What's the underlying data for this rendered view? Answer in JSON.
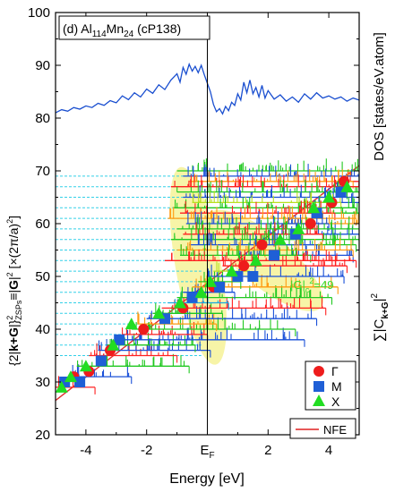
{
  "chart_data": {
    "type": "scatter",
    "panel_label": "(d)",
    "title": {
      "base": "Al",
      "sub1": "114",
      "mid": "Mn",
      "sub2": "24",
      "tail": " (cP138)"
    },
    "xlabel": "Energy [eV]",
    "xlim": [
      -5,
      5
    ],
    "x_ticks": [
      {
        "value": -4,
        "label": "-4"
      },
      {
        "value": -2,
        "label": "-2"
      },
      {
        "value": 0,
        "label": "E",
        "sub": "F"
      },
      {
        "value": 2,
        "label": "2"
      },
      {
        "value": 4,
        "label": "4"
      }
    ],
    "ylabel_left": "{2|k+G|}²ZSPs≡|G|² [×(2π/a)²]",
    "ylabel_left_parts": {
      "p1": "{2|",
      "bold": "k+G",
      "p2": "|}",
      "sup1": "2",
      "sub1": "ZSPs",
      "p3": "≡|",
      "bold2": "G",
      "p4": "|",
      "sup2": "2",
      "p5": " [×(2π/a)",
      "sup3": "2",
      "p6": "]"
    },
    "ylabel_right_top": "DOS [states/eV.atom]",
    "ylabel_right_bottom": {
      "p1": "∑|C",
      "sub": "k+G",
      "p2": "|",
      "sup": "2"
    },
    "ylim": [
      20,
      100
    ],
    "y_ticks": [
      20,
      30,
      40,
      50,
      60,
      70,
      80,
      90,
      100
    ],
    "annotation": {
      "p1": "|G|",
      "sub": "c",
      "sup": "2",
      "p2": "=49"
    },
    "legend": {
      "placement": "bottom-right",
      "entries": [
        {
          "label": "Γ",
          "marker": "circle",
          "color": "#ee1c1c"
        },
        {
          "label": "M",
          "marker": "square",
          "color": "#1f5fd6"
        },
        {
          "label": "X",
          "marker": "triangle",
          "color": "#22dd22"
        }
      ],
      "line_entry": {
        "label": "NFE",
        "color": "#e02020"
      }
    },
    "colors": {
      "dos": "#1a4fd0",
      "nfe": "#e03030",
      "gamma": "#ee1c1c",
      "m": "#1f5fd6",
      "x": "#22dd22",
      "cyan_lines": "#33d0e8",
      "highlight": "#f4f08a",
      "annotation": "#33dd33",
      "bars": [
        "#ff2020",
        "#1a50d8",
        "#20c820",
        "#ff9a10",
        "#18a8e0",
        "#b8e020"
      ]
    },
    "nfe_line": [
      [
        -5,
        26.5
      ],
      [
        5,
        71
      ]
    ],
    "cyan_levels": [
      35,
      37,
      39,
      41,
      43,
      45,
      47,
      49,
      51,
      53,
      55,
      57,
      59,
      61,
      63,
      65,
      67,
      69
    ],
    "series": [
      {
        "name": "Γ",
        "marker": "circle",
        "points": [
          [
            -4.4,
            31
          ],
          [
            -3.9,
            32
          ],
          [
            -3.2,
            36
          ],
          [
            -2.1,
            40
          ],
          [
            -0.8,
            44
          ],
          [
            0.2,
            48
          ],
          [
            1.2,
            52
          ],
          [
            1.8,
            56
          ],
          [
            3.4,
            60
          ],
          [
            4.1,
            64
          ],
          [
            4.5,
            68
          ]
        ]
      },
      {
        "name": "M",
        "marker": "square",
        "points": [
          [
            -4.7,
            30
          ],
          [
            -4.2,
            30
          ],
          [
            -3.5,
            34
          ],
          [
            -2.9,
            38
          ],
          [
            -1.4,
            42
          ],
          [
            -0.5,
            46
          ],
          [
            0.4,
            48
          ],
          [
            1.0,
            50
          ],
          [
            1.5,
            50
          ],
          [
            2.2,
            54
          ],
          [
            2.9,
            58
          ],
          [
            3.6,
            62
          ],
          [
            4.4,
            66
          ]
        ]
      },
      {
        "name": "X",
        "marker": "triangle",
        "points": [
          [
            -4.8,
            29
          ],
          [
            -4.5,
            31
          ],
          [
            -4.0,
            33
          ],
          [
            -3.1,
            37
          ],
          [
            -2.5,
            41
          ],
          [
            -1.6,
            43
          ],
          [
            -0.9,
            45
          ],
          [
            -0.2,
            47
          ],
          [
            0.1,
            49
          ],
          [
            0.8,
            51
          ],
          [
            1.6,
            53
          ],
          [
            2.4,
            57
          ],
          [
            3.0,
            59
          ],
          [
            3.5,
            63
          ],
          [
            4.0,
            65
          ],
          [
            4.6,
            67
          ]
        ]
      }
    ],
    "bar_levels": [
      {
        "y": 29,
        "x0": -5.0,
        "x1": -3.7,
        "c": 0
      },
      {
        "y": 31,
        "x0": -4.6,
        "x1": -2.5,
        "c": 1
      },
      {
        "y": 33,
        "x0": -4.3,
        "x1": -0.6,
        "c": 2
      },
      {
        "y": 35,
        "x0": -3.9,
        "x1": -1.0,
        "c": 0
      },
      {
        "y": 36,
        "x0": -3.6,
        "x1": 0.1,
        "c": 1
      },
      {
        "y": 37,
        "x0": -3.3,
        "x1": -0.4,
        "c": 2
      },
      {
        "y": 38,
        "x0": -3.0,
        "x1": 3.2,
        "c": 1
      },
      {
        "y": 39,
        "x0": -2.8,
        "x1": 0.0,
        "c": 0
      },
      {
        "y": 40,
        "x0": -2.5,
        "x1": 2.9,
        "c": 2
      },
      {
        "y": 41,
        "x0": -2.3,
        "x1": 0.3,
        "c": 3
      },
      {
        "y": 42,
        "x0": -2.0,
        "x1": 3.6,
        "c": 1
      },
      {
        "y": 43,
        "x0": -1.8,
        "x1": 0.5,
        "c": 2
      },
      {
        "y": 44,
        "x0": -1.5,
        "x1": 3.9,
        "c": 0
      },
      {
        "y": 45,
        "x0": -1.3,
        "x1": 0.7,
        "c": 4
      },
      {
        "y": 46,
        "x0": -1.0,
        "x1": 4.1,
        "c": 2
      },
      {
        "y": 47,
        "x0": -0.8,
        "x1": 0.9,
        "c": 1
      },
      {
        "y": 48,
        "x0": -0.5,
        "x1": 4.3,
        "c": 3
      },
      {
        "y": 49,
        "x0": -0.3,
        "x1": 1.1,
        "c": 2
      },
      {
        "y": 50,
        "x0": 0.0,
        "x1": 4.5,
        "c": 1
      },
      {
        "y": 51,
        "x0": 0.2,
        "x1": 1.4,
        "c": 5
      },
      {
        "y": 52,
        "x0": 0.5,
        "x1": 4.6,
        "c": 0
      },
      {
        "y": 53,
        "x0": 0.7,
        "x1": 1.6,
        "c": 2
      },
      {
        "y": 54,
        "x0": 1.0,
        "x1": 4.8,
        "c": 1
      },
      {
        "y": 55,
        "x0": 1.2,
        "x1": 1.9,
        "c": 3
      },
      {
        "y": 56,
        "x0": 1.5,
        "x1": 4.9,
        "c": 2
      },
      {
        "y": 57,
        "x0": 1.7,
        "x1": 2.2,
        "c": 0
      },
      {
        "y": 58,
        "x0": 2.0,
        "x1": 5.0,
        "c": 1
      },
      {
        "y": 59,
        "x0": 2.2,
        "x1": 2.6,
        "c": 2
      },
      {
        "y": 60,
        "x0": 2.5,
        "x1": 5.0,
        "c": 3
      },
      {
        "y": 61,
        "x0": 2.7,
        "x1": 3.0,
        "c": 1
      },
      {
        "y": 62,
        "x0": 3.0,
        "x1": 5.0,
        "c": 2
      },
      {
        "y": 63,
        "x0": 3.2,
        "x1": 3.5,
        "c": 0
      },
      {
        "y": 64,
        "x0": 3.5,
        "x1": 5.0,
        "c": 1
      },
      {
        "y": 65,
        "x0": 3.7,
        "x1": 4.0,
        "c": 5
      },
      {
        "y": 66,
        "x0": 4.0,
        "x1": 5.0,
        "c": 2
      },
      {
        "y": 67,
        "x0": 4.2,
        "x1": 4.5,
        "c": 1
      },
      {
        "y": 68,
        "x0": 4.5,
        "x1": 5.0,
        "c": 0
      },
      {
        "y": 69,
        "x0": 4.6,
        "x1": 5.0,
        "c": 3
      }
    ],
    "upper_bars": [
      {
        "y": 70,
        "x0": -1.0,
        "x1": 5.0,
        "c": 2
      },
      {
        "y": 69,
        "x0": -0.8,
        "x1": 5.0,
        "c": 1
      },
      {
        "y": 68,
        "x0": -0.6,
        "x1": 4.8,
        "c": 3
      },
      {
        "y": 67,
        "x0": -1.2,
        "x1": 5.0,
        "c": 0
      },
      {
        "y": 66,
        "x0": -1.0,
        "x1": 4.6,
        "c": 2
      },
      {
        "y": 65,
        "x0": -0.8,
        "x1": 5.0,
        "c": 1
      },
      {
        "y": 64,
        "x0": -0.5,
        "x1": 4.4,
        "c": 5
      },
      {
        "y": 63,
        "x0": -1.1,
        "x1": 4.9,
        "c": 2
      },
      {
        "y": 62,
        "x0": -0.9,
        "x1": 4.2,
        "c": 0
      },
      {
        "y": 61,
        "x0": -1.3,
        "x1": 4.9,
        "c": 3
      },
      {
        "y": 60,
        "x0": -0.7,
        "x1": 4.0,
        "c": 1
      },
      {
        "y": 59,
        "x0": -1.0,
        "x1": 5.0,
        "c": 2
      },
      {
        "y": 58,
        "x0": -0.8,
        "x1": 3.8,
        "c": 0
      },
      {
        "y": 57,
        "x0": -1.2,
        "x1": 5.0,
        "c": 2
      },
      {
        "y": 56,
        "x0": -0.6,
        "x1": 3.6,
        "c": 1
      },
      {
        "y": 55,
        "x0": -1.0,
        "x1": 4.8,
        "c": 3
      },
      {
        "y": 54,
        "x0": -0.9,
        "x1": 3.4,
        "c": 2
      },
      {
        "y": 53,
        "x0": -1.4,
        "x1": 4.9,
        "c": 0
      }
    ],
    "dos_curve": [
      [
        -5.0,
        81.0
      ],
      [
        -4.8,
        81.6
      ],
      [
        -4.6,
        81.3
      ],
      [
        -4.4,
        82.0
      ],
      [
        -4.2,
        81.7
      ],
      [
        -4.0,
        82.3
      ],
      [
        -3.8,
        82.0
      ],
      [
        -3.6,
        82.8
      ],
      [
        -3.4,
        82.4
      ],
      [
        -3.2,
        83.3
      ],
      [
        -3.0,
        82.9
      ],
      [
        -2.8,
        84.2
      ],
      [
        -2.6,
        83.5
      ],
      [
        -2.4,
        84.8
      ],
      [
        -2.2,
        84.0
      ],
      [
        -2.0,
        85.5
      ],
      [
        -1.8,
        84.7
      ],
      [
        -1.6,
        86.3
      ],
      [
        -1.4,
        85.4
      ],
      [
        -1.2,
        87.2
      ],
      [
        -1.0,
        88.4
      ],
      [
        -0.9,
        86.8
      ],
      [
        -0.8,
        89.6
      ],
      [
        -0.7,
        88.3
      ],
      [
        -0.6,
        90.2
      ],
      [
        -0.5,
        88.9
      ],
      [
        -0.4,
        89.8
      ],
      [
        -0.3,
        88.6
      ],
      [
        -0.2,
        90.0
      ],
      [
        -0.1,
        88.2
      ],
      [
        0.0,
        86.6
      ],
      [
        0.1,
        85.0
      ],
      [
        0.2,
        82.6
      ],
      [
        0.3,
        81.2
      ],
      [
        0.4,
        81.8
      ],
      [
        0.5,
        80.8
      ],
      [
        0.6,
        82.2
      ],
      [
        0.7,
        81.4
      ],
      [
        0.8,
        83.0
      ],
      [
        0.9,
        82.4
      ],
      [
        1.0,
        84.6
      ],
      [
        1.1,
        83.4
      ],
      [
        1.2,
        86.8
      ],
      [
        1.3,
        84.8
      ],
      [
        1.4,
        87.2
      ],
      [
        1.5,
        84.6
      ],
      [
        1.6,
        85.8
      ],
      [
        1.7,
        84.0
      ],
      [
        1.8,
        86.2
      ],
      [
        1.9,
        83.8
      ],
      [
        2.0,
        85.2
      ],
      [
        2.2,
        83.6
      ],
      [
        2.4,
        84.4
      ],
      [
        2.6,
        83.2
      ],
      [
        2.8,
        84.0
      ],
      [
        3.0,
        83.0
      ],
      [
        3.2,
        84.6
      ],
      [
        3.4,
        83.6
      ],
      [
        3.6,
        84.8
      ],
      [
        3.8,
        83.8
      ],
      [
        4.0,
        84.2
      ],
      [
        4.2,
        83.6
      ],
      [
        4.4,
        84.0
      ],
      [
        4.6,
        83.2
      ],
      [
        4.8,
        83.8
      ],
      [
        5.0,
        83.4
      ]
    ],
    "highlight_regions": [
      {
        "cx": -0.3,
        "cy": 52,
        "rx": 0.75,
        "ry": 19,
        "rot": -10
      },
      {
        "cx": 1.9,
        "cy": 53,
        "rx": 2.4,
        "ry": 4.8,
        "rot": 40
      }
    ]
  }
}
